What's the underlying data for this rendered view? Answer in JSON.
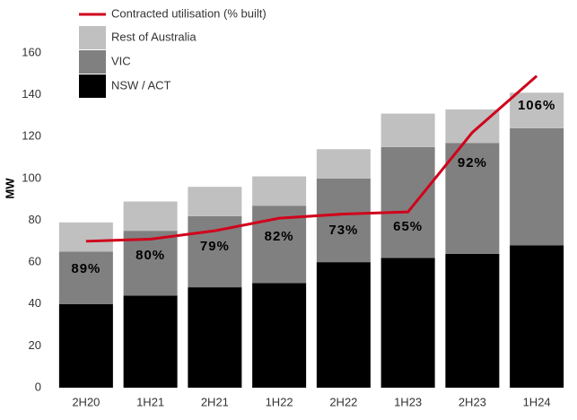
{
  "chart_data": {
    "type": "bar",
    "y_label": "MW",
    "categories": [
      "2H20",
      "1H21",
      "2H21",
      "1H22",
      "2H22",
      "1H23",
      "2H23",
      "1H24"
    ],
    "series": [
      {
        "name": "NSW / ACT",
        "color": "#000000",
        "values": [
          40,
          44,
          48,
          50,
          60,
          62,
          64,
          68
        ]
      },
      {
        "name": "VIC",
        "color": "#808080",
        "values": [
          25,
          31,
          34,
          37,
          40,
          53,
          53,
          56
        ]
      },
      {
        "name": "Rest of Australia",
        "color": "#c0c0c0",
        "values": [
          14,
          14,
          14,
          14,
          14,
          16,
          16,
          17
        ]
      },
      {
        "name": "Contracted utilisation (% built)",
        "type": "line",
        "color": "#d0021b",
        "values": [
          70,
          71,
          75,
          81,
          83,
          84,
          122,
          149
        ]
      }
    ],
    "annotations": [
      "89%",
      "80%",
      "79%",
      "82%",
      "73%",
      "65%",
      "92%",
      "106%"
    ],
    "ylim": [
      0,
      160
    ],
    "yticks": [
      0,
      20,
      40,
      60,
      80,
      100,
      120,
      140,
      160
    ],
    "grid": false
  }
}
